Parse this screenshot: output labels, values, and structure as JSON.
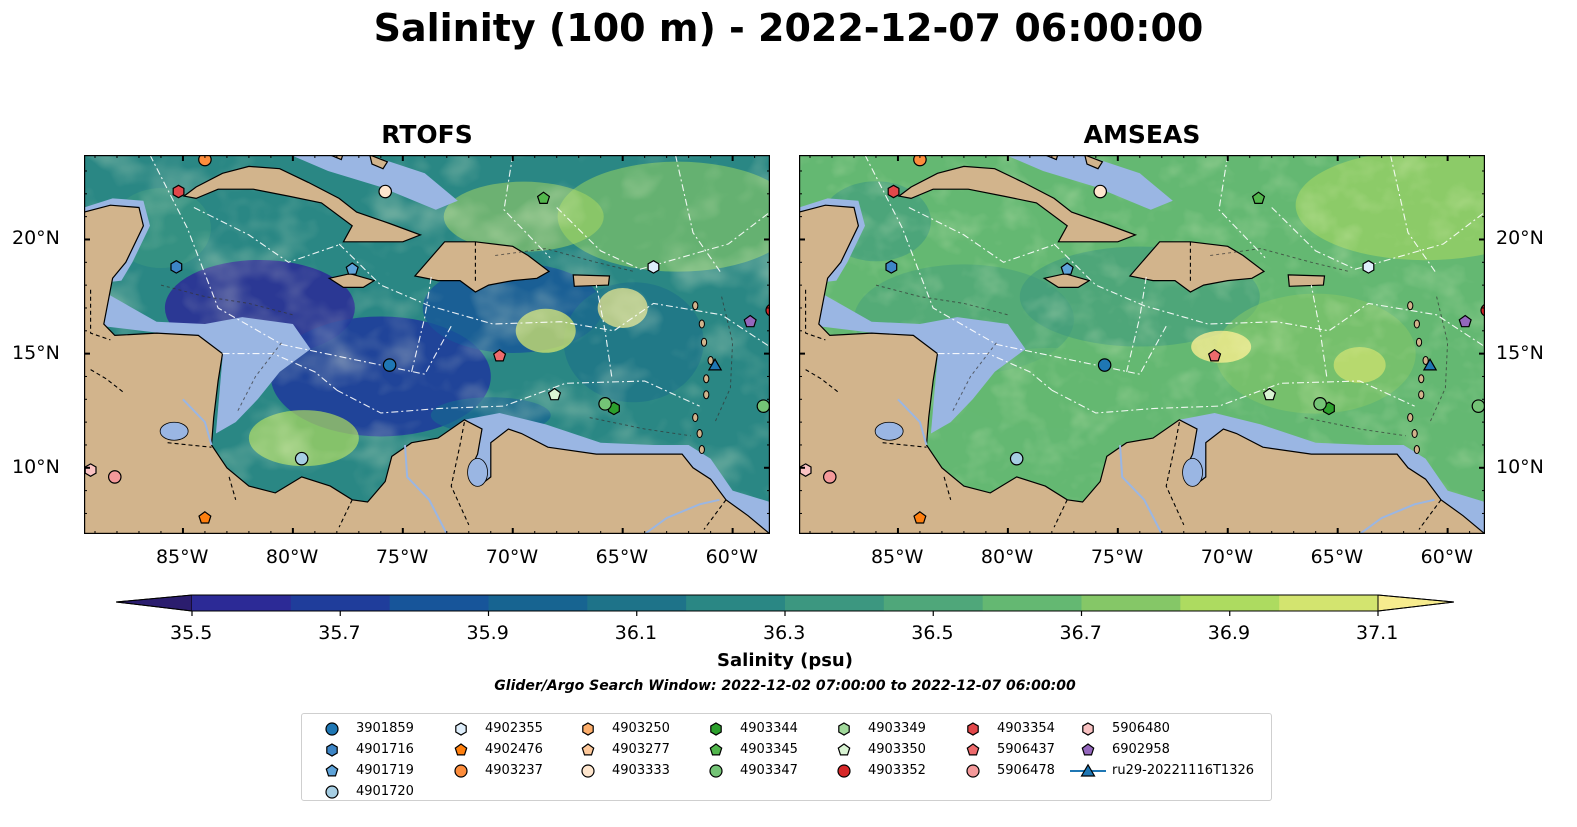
{
  "title": "Salinity (100 m) - 2022-12-07 06:00:00",
  "panels": [
    {
      "title": "RTOFS",
      "model": "rtofs"
    },
    {
      "title": "AMSEAS",
      "model": "amseas"
    }
  ],
  "lon_ticks": [
    "85°W",
    "80°W",
    "75°W",
    "70°W",
    "65°W",
    "60°W"
  ],
  "lat_ticks": [
    "20°N",
    "15°N",
    "10°N"
  ],
  "extent": {
    "lon_min": -89.5,
    "lon_max": -58.3,
    "lat_min": 7.1,
    "lat_max": 23.7
  },
  "colorbar": {
    "min": 35.5,
    "max": 37.1,
    "step": 0.1,
    "ticks": [
      "35.5",
      "35.7",
      "35.9",
      "36.1",
      "36.3",
      "36.5",
      "36.7",
      "36.9",
      "37.1"
    ],
    "label": "Salinity (psu)",
    "colors": [
      "#2b1d6e",
      "#2c2a96",
      "#1f3d9b",
      "#17559a",
      "#176491",
      "#1e7389",
      "#2a8784",
      "#3c9780",
      "#4fa77a",
      "#64b872",
      "#85c767",
      "#addb60",
      "#d3e46f",
      "#f7ec8e"
    ]
  },
  "search_window": "Glider/Argo Search Window: 2022-12-02 07:00:00 to 2022-12-07 06:00:00",
  "colors": {
    "land": "#d2b48c",
    "shallow": "#9ab6e3",
    "outside": "#2b1d6e"
  },
  "legend": [
    {
      "label": "3901859",
      "marker": "circle",
      "color": "#1f77b4"
    },
    {
      "label": "4901716",
      "marker": "hexagon",
      "color": "#3d85c6"
    },
    {
      "label": "4901719",
      "marker": "pentagon",
      "color": "#5ea3d9"
    },
    {
      "label": "4901720",
      "marker": "circle",
      "color": "#a6cee3"
    },
    {
      "label": "4902355",
      "marker": "hexagon",
      "color": "#deeefb"
    },
    {
      "label": "4902476",
      "marker": "pentagon",
      "color": "#ff7f0e"
    },
    {
      "label": "4903237",
      "marker": "circle",
      "color": "#fd8d3c"
    },
    {
      "label": "4903250",
      "marker": "hexagon",
      "color": "#fdae6b"
    },
    {
      "label": "4903277",
      "marker": "pentagon",
      "color": "#fdc89a"
    },
    {
      "label": "4903333",
      "marker": "circle",
      "color": "#fee6ce"
    },
    {
      "label": "4903344",
      "marker": "hexagon",
      "color": "#2ca02c"
    },
    {
      "label": "4903345",
      "marker": "pentagon",
      "color": "#52b64c"
    },
    {
      "label": "4903347",
      "marker": "circle",
      "color": "#74c476"
    },
    {
      "label": "4903349",
      "marker": "hexagon",
      "color": "#a1d99b"
    },
    {
      "label": "4903350",
      "marker": "pentagon",
      "color": "#d9f4d3"
    },
    {
      "label": "4903352",
      "marker": "circle",
      "color": "#d62728"
    },
    {
      "label": "4903354",
      "marker": "hexagon",
      "color": "#e2474a"
    },
    {
      "label": "5906437",
      "marker": "pentagon",
      "color": "#ee6a6c"
    },
    {
      "label": "5906478",
      "marker": "circle",
      "color": "#f4999a"
    },
    {
      "label": "5906480",
      "marker": "hexagon",
      "color": "#f9c2c2"
    },
    {
      "label": "6902958",
      "marker": "pentagon",
      "color": "#9467bd"
    },
    {
      "label": "ru29-20221116T1326",
      "marker": "triangle-line",
      "color": "#1f77b4"
    }
  ],
  "floats": [
    {
      "id": "3901859",
      "lon": -75.6,
      "lat": 14.5
    },
    {
      "id": "4901716",
      "lon": -85.3,
      "lat": 18.8
    },
    {
      "id": "4901719",
      "lon": -77.3,
      "lat": 18.7
    },
    {
      "id": "4901720",
      "lon": -79.6,
      "lat": 10.4
    },
    {
      "id": "4902355",
      "lon": -63.6,
      "lat": 18.8
    },
    {
      "id": "4902476",
      "lon": -84.0,
      "lat": 7.8
    },
    {
      "id": "4903237",
      "lon": -84.0,
      "lat": 23.5
    },
    {
      "id": "4903333",
      "lon": -75.8,
      "lat": 22.1
    },
    {
      "id": "4903344",
      "lon": -65.4,
      "lat": 12.6
    },
    {
      "id": "4903345",
      "lon": -68.6,
      "lat": 21.8
    },
    {
      "id": "4903347",
      "lon": -65.8,
      "lat": 12.8
    },
    {
      "id": "4903347",
      "lon": -58.6,
      "lat": 12.7
    },
    {
      "id": "4903350",
      "lon": -68.1,
      "lat": 13.2
    },
    {
      "id": "4903352",
      "lon": -58.2,
      "lat": 16.9
    },
    {
      "id": "4903354",
      "lon": -85.2,
      "lat": 22.1
    },
    {
      "id": "5906437",
      "lon": -70.6,
      "lat": 14.9
    },
    {
      "id": "5906478",
      "lon": -88.1,
      "lat": 9.6
    },
    {
      "id": "5906480",
      "lon": -89.2,
      "lat": 9.9
    },
    {
      "id": "6902958",
      "lon": -59.2,
      "lat": 16.4
    },
    {
      "id": "ru29-20221116T1326",
      "lon": -60.8,
      "lat": 14.5
    }
  ]
}
